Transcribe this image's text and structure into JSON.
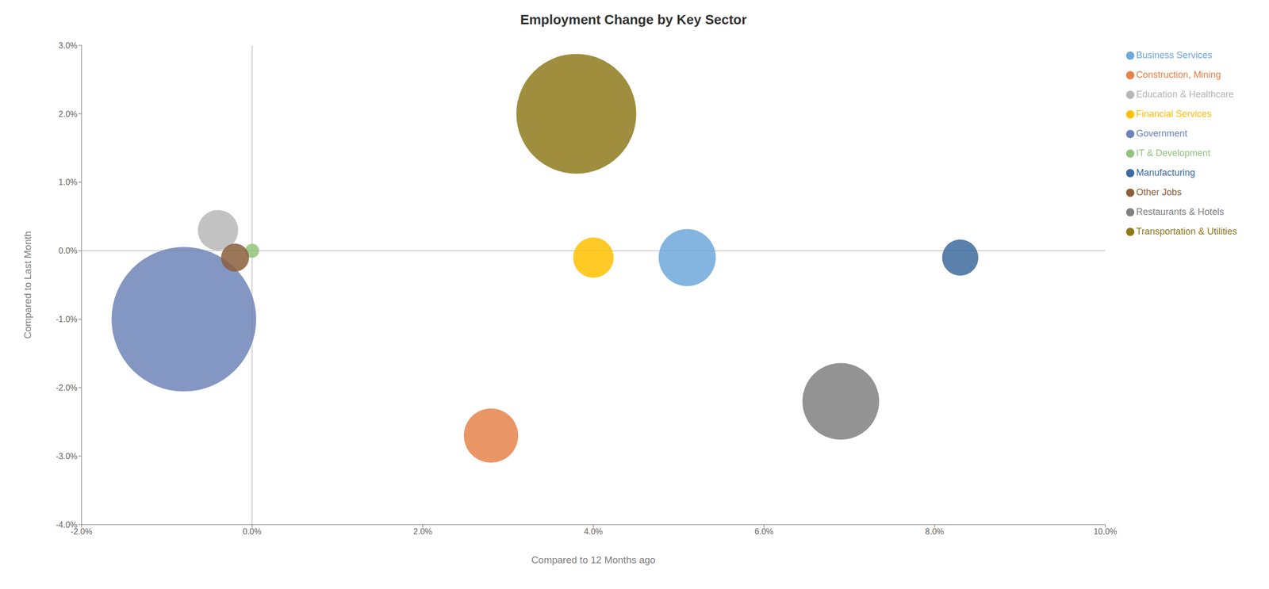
{
  "chart_data": {
    "type": "scatter",
    "title": "Employment Change by Key Sector",
    "xlabel": "Compared to 12 Months ago",
    "ylabel": "Compared to Last Month",
    "xlim": [
      -0.02,
      0.1
    ],
    "ylim": [
      -0.04,
      0.03
    ],
    "xticks": [
      {
        "value": -0.02,
        "label": "-2.0%"
      },
      {
        "value": 0.0,
        "label": "0.0%"
      },
      {
        "value": 0.02,
        "label": "2.0%"
      },
      {
        "value": 0.04,
        "label": "4.0%"
      },
      {
        "value": 0.06,
        "label": "6.0%"
      },
      {
        "value": 0.08,
        "label": "8.0%"
      },
      {
        "value": 0.1,
        "label": "10.0%"
      }
    ],
    "yticks": [
      {
        "value": -0.04,
        "label": "-4.0%"
      },
      {
        "value": -0.03,
        "label": "-3.0%"
      },
      {
        "value": -0.02,
        "label": "-2.0%"
      },
      {
        "value": -0.01,
        "label": "-1.0%"
      },
      {
        "value": 0.0,
        "label": "0.0%"
      },
      {
        "value": 0.01,
        "label": "1.0%"
      },
      {
        "value": 0.02,
        "label": "2.0%"
      },
      {
        "value": 0.03,
        "label": "3.0%"
      }
    ],
    "grid": false,
    "legend": "right",
    "series": [
      {
        "name": "Business Services",
        "color": "#6fa8dc",
        "x": [
          0.051
        ],
        "y": [
          -0.001
        ],
        "size": [
          5000
        ]
      },
      {
        "name": "Construction, Mining",
        "color": "#e6834a",
        "x": [
          0.028
        ],
        "y": [
          -0.027
        ],
        "size": [
          4500
        ]
      },
      {
        "name": "Education & Healthcare",
        "color": "#b7b7b7",
        "x": [
          -0.004
        ],
        "y": [
          0.003
        ],
        "size": [
          2500
        ]
      },
      {
        "name": "Financial Services",
        "color": "#ffc000",
        "x": [
          0.04
        ],
        "y": [
          -0.001
        ],
        "size": [
          2500
        ]
      },
      {
        "name": "Government",
        "color": "#6d85b7",
        "x": [
          -0.008
        ],
        "y": [
          -0.01
        ],
        "size": [
          32000
        ]
      },
      {
        "name": "IT & Development",
        "color": "#93c47d",
        "x": [
          0.0
        ],
        "y": [
          0.0
        ],
        "size": [
          300
        ]
      },
      {
        "name": "Manufacturing",
        "color": "#3d6b9e",
        "x": [
          0.083
        ],
        "y": [
          -0.001
        ],
        "size": [
          2000
        ]
      },
      {
        "name": "Other Jobs",
        "color": "#8b5e3c",
        "x": [
          -0.002
        ],
        "y": [
          -0.001
        ],
        "size": [
          1200
        ]
      },
      {
        "name": "Restaurants & Hotels",
        "color": "#808080",
        "x": [
          0.069
        ],
        "y": [
          -0.022
        ],
        "size": [
          9000
        ]
      },
      {
        "name": "Transportation & Utilities",
        "color": "#8e7a1b",
        "x": [
          0.038
        ],
        "y": [
          0.02
        ],
        "size": [
          22000
        ]
      }
    ]
  }
}
